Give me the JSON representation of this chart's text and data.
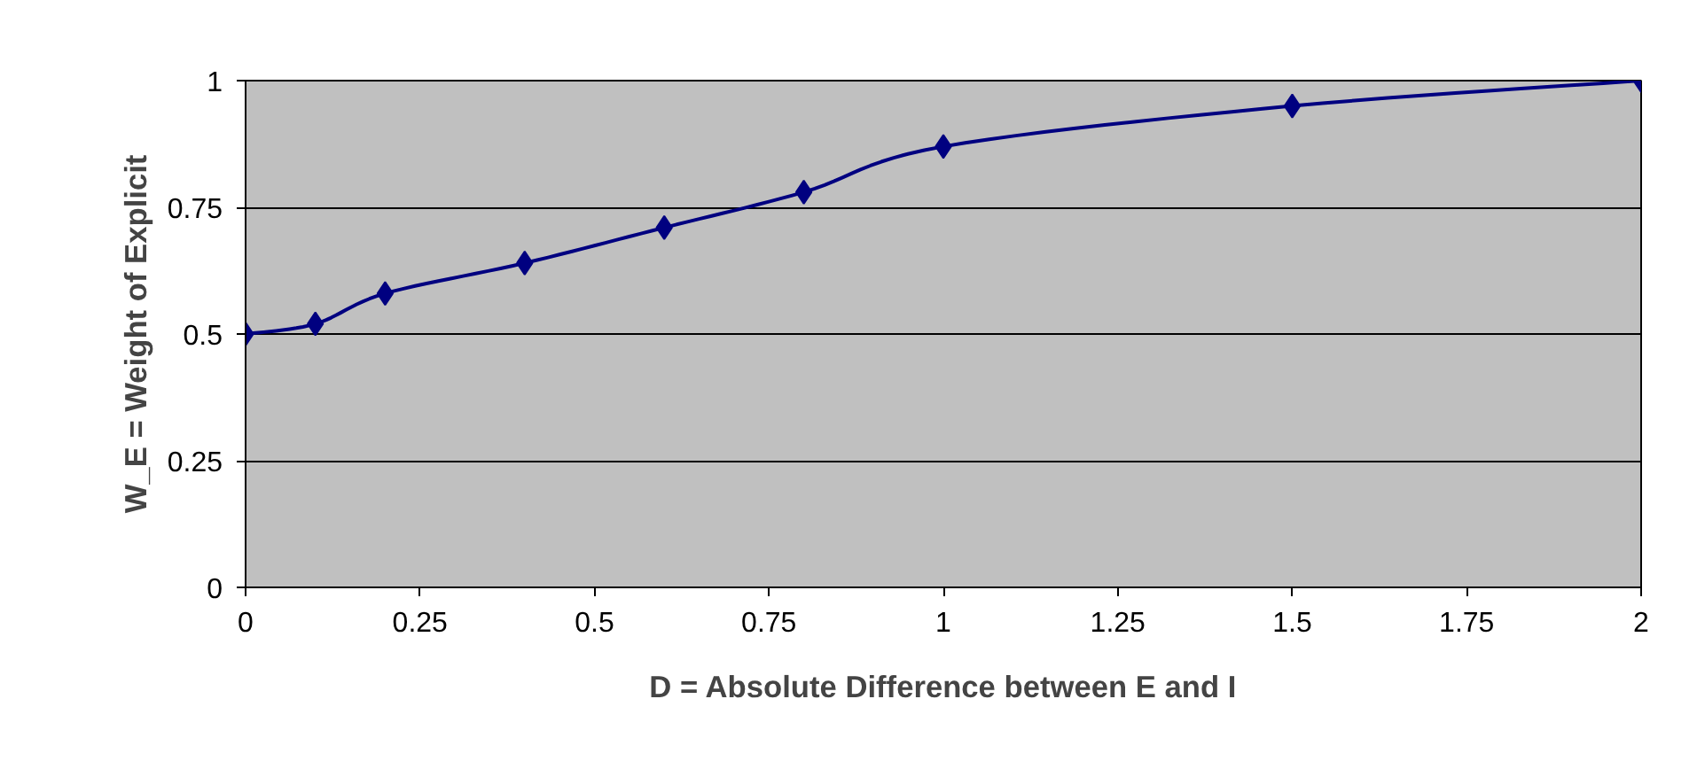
{
  "chart_data": {
    "type": "line",
    "xlabel": "D = Absolute Difference between E and I",
    "ylabel": "W_E = Weight of Explicit",
    "x": [
      0,
      0.1,
      0.2,
      0.4,
      0.6,
      0.8,
      1,
      1.5,
      2
    ],
    "series": [
      {
        "color": "#000080",
        "values": [
          0.5,
          0.52,
          0.58,
          0.64,
          0.71,
          0.78,
          0.87,
          0.95,
          1
        ]
      }
    ],
    "xlim": [
      0,
      2
    ],
    "xticks": [
      0,
      0.25,
      0.5,
      0.75,
      1,
      1.25,
      1.5,
      1.75,
      2
    ],
    "ylim": [
      0,
      1
    ],
    "yticks": [
      0,
      0.25,
      0.5,
      0.75,
      1
    ],
    "grid": "y",
    "marker": "diamond",
    "line_style": "solid"
  }
}
